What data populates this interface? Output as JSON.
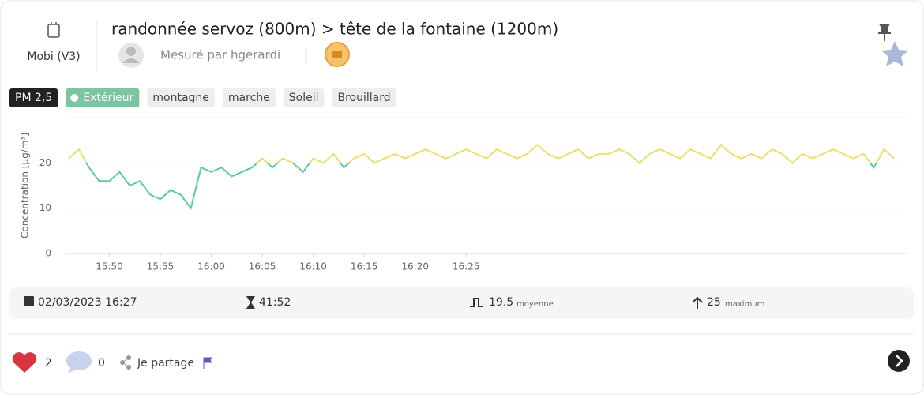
{
  "device": {
    "name": "Mobi (V3)"
  },
  "header": {
    "title": "randonnée servoz (800m) > tête de la fontaine (1200m)",
    "measured_by": "Mesuré par hgerardi",
    "separator": "|"
  },
  "tags": [
    "PM 2,5",
    "Extérieur",
    "montagne",
    "marche",
    "Soleil",
    "Brouillard"
  ],
  "chart_data": {
    "type": "line",
    "y_label": "Concentration [µg/m³]",
    "x": [
      946,
      947,
      948,
      949,
      950,
      951,
      952,
      953,
      954,
      955,
      956,
      957,
      958,
      959,
      960,
      961,
      962,
      963,
      964,
      965,
      966,
      967,
      968,
      969,
      970,
      971,
      972,
      973,
      974,
      975,
      976,
      977,
      978,
      979,
      980,
      981,
      982,
      983,
      984,
      985,
      986,
      987,
      988,
      989,
      990,
      991,
      992,
      993,
      994,
      995,
      996,
      997,
      998,
      999,
      1000,
      1001,
      1002,
      1003,
      1004,
      1005,
      1006,
      1007,
      1008,
      1009,
      1010,
      1011,
      1012,
      1013,
      1014,
      1015,
      1016,
      1017,
      1018,
      1019,
      1020,
      1021,
      1022,
      1023,
      1024,
      1025,
      1026,
      1027
    ],
    "values": [
      21,
      23,
      19,
      16,
      16,
      18,
      15,
      16,
      13,
      12,
      14,
      13,
      10,
      19,
      18,
      19,
      17,
      18,
      19,
      21,
      19,
      21,
      20,
      18,
      21,
      20,
      22,
      19,
      21,
      22,
      20,
      21,
      22,
      21,
      22,
      23,
      22,
      21,
      22,
      23,
      22,
      21,
      23,
      22,
      21,
      22,
      24,
      22,
      21,
      22,
      23,
      21,
      22,
      22,
      23,
      22,
      20,
      22,
      23,
      22,
      21,
      23,
      22,
      21,
      24,
      22,
      21,
      22,
      21,
      23,
      22,
      20,
      22,
      21,
      22,
      23,
      22,
      21,
      22,
      19,
      23,
      21
    ],
    "color": "#5ccb9c",
    "color_above": "#e8e070",
    "threshold": 20,
    "xlim": [
      945.7,
      1027.6
    ],
    "ylim": [
      0,
      30
    ],
    "xticks": [
      {
        "value": 950,
        "label": "15:50"
      },
      {
        "value": 955,
        "label": "15:55"
      },
      {
        "value": 960,
        "label": "16:00"
      },
      {
        "value": 965,
        "label": "16:05"
      },
      {
        "value": 970,
        "label": "16:10"
      },
      {
        "value": 975,
        "label": "16:15"
      },
      {
        "value": 980,
        "label": "16:20"
      },
      {
        "value": 985,
        "label": "16:25"
      }
    ],
    "yticks": [
      0,
      10,
      20
    ],
    "grid": true
  },
  "stats": {
    "date": "02/03/2023 16:27",
    "duration": "41:52",
    "average": 19.5,
    "average_label": "moyenne",
    "maximum": 25,
    "maximum_label": "maximum"
  },
  "footer": {
    "likes": 2,
    "comments": 0,
    "share": "Je partage"
  }
}
